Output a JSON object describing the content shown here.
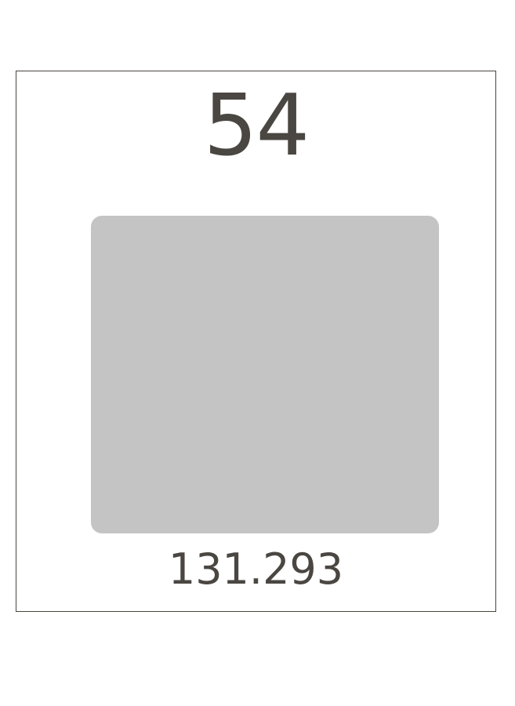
{
  "element": {
    "atomic_number": "54",
    "atomic_mass": "131.293"
  },
  "colors": {
    "text": "#4a4641",
    "border": "#4a4641",
    "tile": "#c4c4c4",
    "background": "#ffffff"
  }
}
